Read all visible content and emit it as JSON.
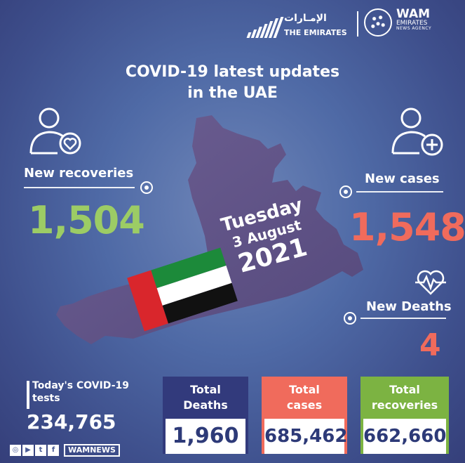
{
  "logos": {
    "emirates_arabic": "الإمـارات",
    "emirates_english": "THE EMIRATES",
    "wam_name": "WAM",
    "wam_line1": "EMIRATES",
    "wam_line2": "NEWS AGENCY"
  },
  "title": {
    "line1": "COVID-19 latest updates",
    "line2": "in the UAE"
  },
  "date": {
    "weekday": "Tuesday",
    "day_month": "3 August",
    "year": "2021"
  },
  "new_recoveries": {
    "label": "New recoveries",
    "value": "1,504",
    "color": "#9ccc65"
  },
  "new_cases": {
    "label": "New cases",
    "value": "1,548",
    "color": "#f06b5c"
  },
  "new_deaths": {
    "label": "New Deaths",
    "value": "4",
    "color": "#f06b5c"
  },
  "tests": {
    "label_line1": "Today's COVID-19",
    "label_line2": "tests",
    "value": "234,765"
  },
  "totals": [
    {
      "line1": "Total",
      "line2": "Deaths",
      "value": "1,960",
      "color": "#323a7c"
    },
    {
      "line1": "Total",
      "line2": "cases",
      "value": "685,462",
      "color": "#f06b5c"
    },
    {
      "line1": "Total",
      "line2": "recoveries",
      "value": "662,660",
      "color": "#7cb342"
    }
  ],
  "social": {
    "handle": "WAMNEWS",
    "icons": [
      "instagram-icon",
      "youtube-icon",
      "twitter-icon",
      "facebook-icon"
    ]
  },
  "flag_colors": {
    "red": "#d9262c",
    "green": "#1c8a3a",
    "white": "#ffffff",
    "black": "#111111"
  }
}
